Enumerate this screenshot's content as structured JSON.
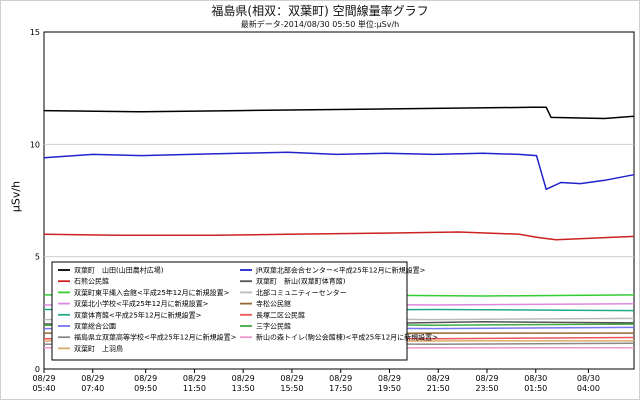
{
  "chart_data": {
    "type": "line",
    "title": "福島県(相双：双葉町) 空間線量率グラフ",
    "subtitle": "最新データ-2014/08/30 05:50 単位:μSv/h",
    "ylabel": "μSv/h",
    "xlabel": "",
    "ylim": [
      0,
      15
    ],
    "yticks": [
      "0",
      "5",
      "10",
      "15"
    ],
    "grid": "horizontal",
    "legend_placement": "bottom-left",
    "x_ticks": [
      {
        "date": "08/29",
        "time": "05:40",
        "hour": 0
      },
      {
        "date": "08/29",
        "time": "07:40",
        "hour": 2
      },
      {
        "date": "08/29",
        "time": "09:50",
        "hour": 4.17
      },
      {
        "date": "08/29",
        "time": "11:50",
        "hour": 6.17
      },
      {
        "date": "08/29",
        "time": "13:50",
        "hour": 8.17
      },
      {
        "date": "08/29",
        "time": "15:50",
        "hour": 10.17
      },
      {
        "date": "08/29",
        "time": "17:50",
        "hour": 12.17
      },
      {
        "date": "08/29",
        "time": "19:50",
        "hour": 14.17
      },
      {
        "date": "08/29",
        "time": "21:50",
        "hour": 16.17
      },
      {
        "date": "08/29",
        "time": "23:50",
        "hour": 18.17
      },
      {
        "date": "08/30",
        "time": "01:50",
        "hour": 20.17
      },
      {
        "date": "08/30",
        "time": "04:00",
        "hour": 22.33
      }
    ],
    "x_range_hours": [
      0,
      24.2
    ],
    "series": [
      {
        "name": "双葉町　山田(山田農村広場)",
        "color": "#000000",
        "points": [
          [
            0,
            11.5
          ],
          [
            4,
            11.45
          ],
          [
            8,
            11.5
          ],
          [
            12,
            11.55
          ],
          [
            16,
            11.6
          ],
          [
            20,
            11.65
          ],
          [
            20.6,
            11.65
          ],
          [
            20.8,
            11.2
          ],
          [
            23,
            11.15
          ],
          [
            24.2,
            11.25
          ]
        ]
      },
      {
        "name": "JR双葉北部会合センター<平成25年12月に新規設置>",
        "color": "#2222cc",
        "points": [
          [
            0,
            9.4
          ],
          [
            2,
            9.55
          ],
          [
            4,
            9.5
          ],
          [
            6,
            9.55
          ],
          [
            8,
            9.6
          ],
          [
            10,
            9.65
          ],
          [
            12,
            9.55
          ],
          [
            14,
            9.6
          ],
          [
            16,
            9.55
          ],
          [
            18,
            9.6
          ],
          [
            19.5,
            9.55
          ],
          [
            20.2,
            9.5
          ],
          [
            20.6,
            8.0
          ],
          [
            21.2,
            8.3
          ],
          [
            22,
            8.25
          ],
          [
            23,
            8.4
          ],
          [
            24.2,
            8.65
          ]
        ]
      },
      {
        "name": "石熊公民館",
        "color": "#cc2222",
        "points": [
          [
            0,
            6.0
          ],
          [
            3,
            5.95
          ],
          [
            7,
            5.95
          ],
          [
            10,
            6.0
          ],
          [
            14,
            6.05
          ],
          [
            17,
            6.1
          ],
          [
            19.5,
            6.0
          ],
          [
            20.3,
            5.85
          ],
          [
            21,
            5.75
          ],
          [
            24.2,
            5.9
          ]
        ]
      },
      {
        "name": "双葉町　新山(双葉町体育館)",
        "color": "#555555",
        "points": [
          [
            0,
            2.0
          ],
          [
            6,
            2.05
          ],
          [
            12,
            2.0
          ],
          [
            18,
            2.1
          ],
          [
            24.2,
            2.05
          ]
        ]
      },
      {
        "name": "双葉町東平縄入会館<平成25年12月に新規設置>",
        "color": "#33cc33",
        "points": [
          [
            0,
            3.3
          ],
          [
            6,
            3.25
          ],
          [
            12,
            3.3
          ],
          [
            18,
            3.25
          ],
          [
            24.2,
            3.3
          ]
        ]
      },
      {
        "name": "北部コミュニティーセンター",
        "color": "#bbbbbb",
        "points": [
          [
            0,
            2.2
          ],
          [
            8,
            2.25
          ],
          [
            16,
            2.2
          ],
          [
            24.2,
            2.25
          ]
        ]
      },
      {
        "name": "双葉北小学校<平成25年12月に新規設置>",
        "color": "#dd88dd",
        "points": [
          [
            0,
            2.85
          ],
          [
            8,
            2.9
          ],
          [
            16,
            2.85
          ],
          [
            24.2,
            2.9
          ]
        ]
      },
      {
        "name": "寺松公民館",
        "color": "#996633",
        "points": [
          [
            0,
            1.6
          ],
          [
            8,
            1.55
          ],
          [
            16,
            1.6
          ],
          [
            24.2,
            1.6
          ]
        ]
      },
      {
        "name": "双葉体育館<平成25年12月に新規設置>",
        "color": "#22aa88",
        "points": [
          [
            0,
            2.65
          ],
          [
            8,
            2.6
          ],
          [
            16,
            2.65
          ],
          [
            24.2,
            2.6
          ]
        ]
      },
      {
        "name": "長塚二区公民館",
        "color": "#ee5555",
        "points": [
          [
            0,
            1.35
          ],
          [
            8,
            1.4
          ],
          [
            16,
            1.35
          ],
          [
            24.2,
            1.4
          ]
        ]
      },
      {
        "name": "双葉総合公園",
        "color": "#7777ee",
        "points": [
          [
            0,
            1.8
          ],
          [
            8,
            1.85
          ],
          [
            16,
            1.8
          ],
          [
            24.2,
            1.85
          ]
        ]
      },
      {
        "name": "三字公民館",
        "color": "#44aa44",
        "points": [
          [
            0,
            1.95
          ],
          [
            8,
            2.0
          ],
          [
            16,
            1.95
          ],
          [
            24.2,
            2.0
          ]
        ]
      },
      {
        "name": "福島県立双葉高等学校<平成25年12月に新規設置>",
        "color": "#888888",
        "points": [
          [
            0,
            1.1
          ],
          [
            8,
            1.15
          ],
          [
            16,
            1.1
          ],
          [
            24.2,
            1.15
          ]
        ]
      },
      {
        "name": "新山の森トイレ(駒公会館棟)<平成25年12月に新規設置>",
        "color": "#ee99cc",
        "points": [
          [
            0,
            0.95
          ],
          [
            8,
            0.9
          ],
          [
            16,
            0.95
          ],
          [
            24.2,
            0.95
          ]
        ]
      },
      {
        "name": "双葉町　上羽鳥",
        "color": "#ddaa66",
        "points": [
          [
            0,
            1.25
          ],
          [
            8,
            1.2
          ],
          [
            16,
            1.25
          ],
          [
            24.2,
            1.25
          ]
        ]
      }
    ]
  }
}
